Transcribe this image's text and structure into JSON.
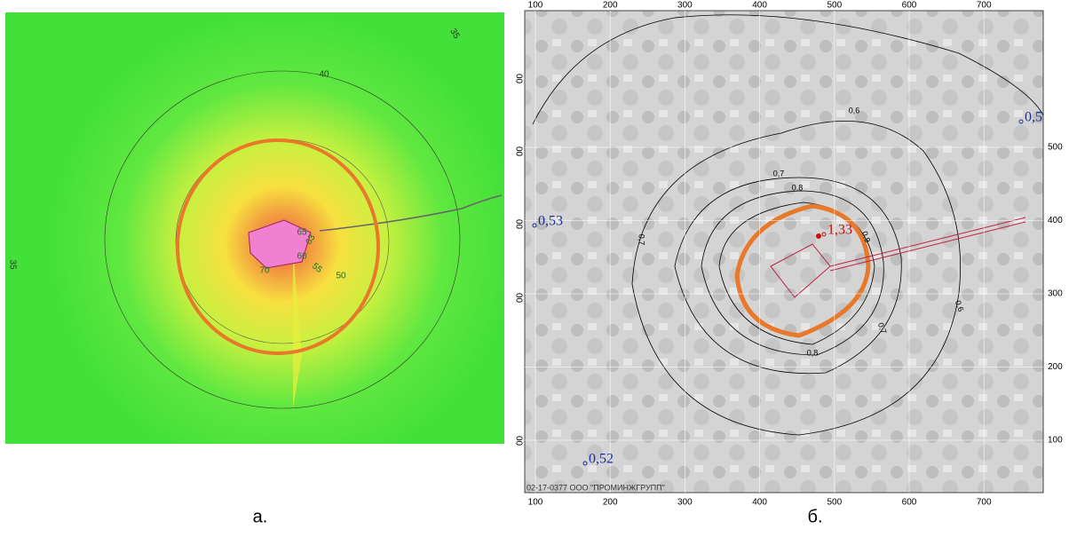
{
  "panel_a": {
    "caption": "а.",
    "contour_labels": [
      "35",
      "40",
      "35",
      "50",
      "55",
      "60",
      "63",
      "65",
      "70"
    ]
  },
  "panel_b": {
    "caption": "б.",
    "x_ticks": [
      100,
      200,
      300,
      400,
      500,
      600,
      700
    ],
    "y_ticks": [
      100,
      200,
      300,
      400,
      500
    ],
    "left_ticks": [
      "00",
      "00",
      "00",
      "00",
      "00"
    ],
    "contour_labels": [
      "0,6",
      "0,7",
      "0,8",
      "0,9",
      "0,7",
      "0,8",
      "0,7",
      "0,6"
    ],
    "point_labels": [
      "0,53",
      "0,52",
      "1,33",
      "0,5"
    ],
    "footer": "02-17-0377 ООО \"ПРОМИНЖГРУПП\""
  }
}
